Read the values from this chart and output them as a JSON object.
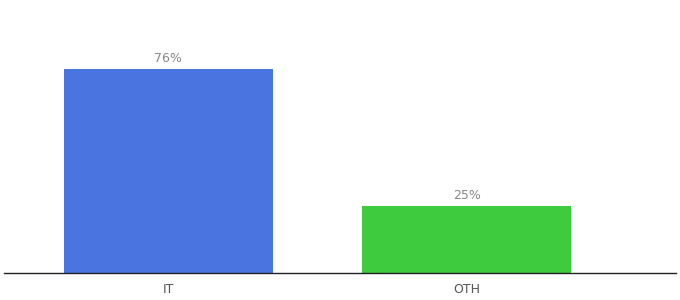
{
  "categories": [
    "IT",
    "OTH"
  ],
  "values": [
    76,
    25
  ],
  "bar_colors": [
    "#4a74e0",
    "#3ecb3e"
  ],
  "value_labels": [
    "76%",
    "25%"
  ],
  "ylim": [
    0,
    100
  ],
  "background_color": "#ffffff",
  "label_fontsize": 9,
  "tick_fontsize": 9,
  "bar_width": 0.28,
  "x_positions": [
    0.22,
    0.62
  ],
  "xlim": [
    0,
    0.9
  ]
}
